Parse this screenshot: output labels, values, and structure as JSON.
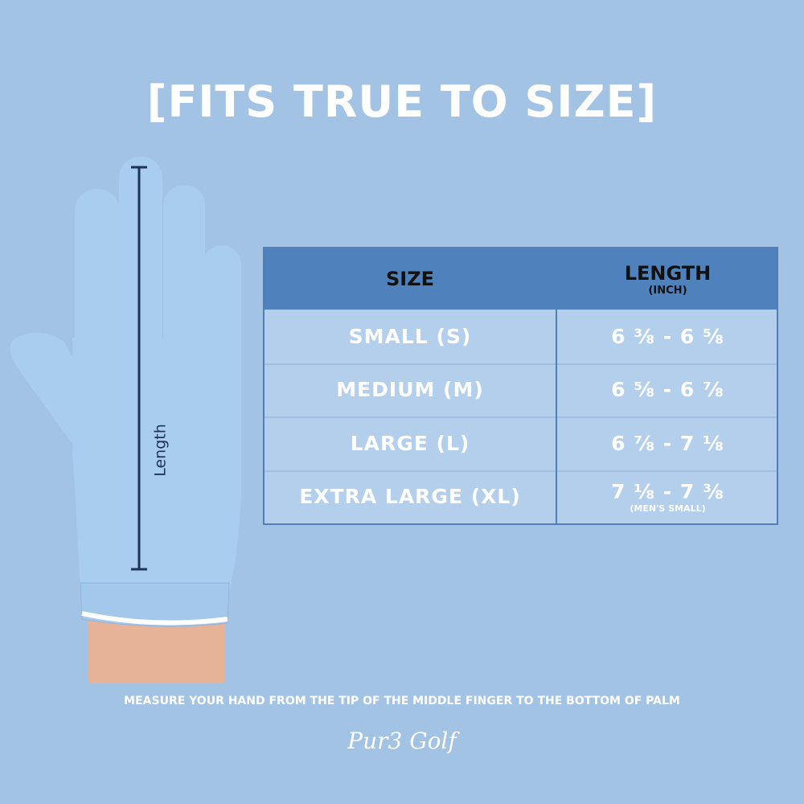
{
  "header": {
    "title": "[FITS TRUE TO SIZE]"
  },
  "table": {
    "columns": [
      {
        "label": "SIZE"
      },
      {
        "label": "LENGTH",
        "unit": "(INCH)"
      }
    ],
    "rows": [
      {
        "size": "SMALL (S)",
        "length": "6 ⅜ - 6 ⅝"
      },
      {
        "size": "MEDIUM (M)",
        "length": "6 ⅝ - 6 ⅞"
      },
      {
        "size": "LARGE (L)",
        "length": "6 ⅞ - 7 ⅛"
      },
      {
        "size": "EXTRA LARGE (XL)",
        "length": "7 ⅛ - 7 ⅜",
        "note": "(MEN'S SMALL)"
      }
    ]
  },
  "illustration": {
    "measure_label": "Length"
  },
  "footer": {
    "instruction": "MEASURE YOUR HAND FROM THE TIP OF THE MIDDLE FINGER TO THE BOTTOM OF PALM",
    "brand": "Pur3 Golf"
  }
}
